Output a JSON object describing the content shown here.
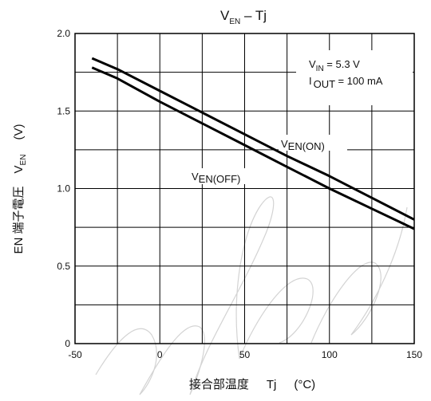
{
  "chart_data": {
    "type": "line",
    "title": {
      "main": "V",
      "sub": "EN",
      "tail": " – Tj"
    },
    "xlabel": {
      "main": "接合部温度",
      "symbol": "Tj",
      "unit": "(°C)"
    },
    "ylabel": {
      "prefix": "EN 端子電圧",
      "symbol": "V",
      "symbol_sub": "EN",
      "unit": "(V)"
    },
    "xlim": [
      -50,
      150
    ],
    "ylim": [
      0,
      2.0
    ],
    "x_ticks": [
      -50,
      0,
      50,
      100,
      150
    ],
    "x_tick_labels": [
      "-50",
      "0",
      "50",
      "100",
      "150"
    ],
    "y_ticks": [
      0,
      0.5,
      1.0,
      1.5,
      2.0
    ],
    "y_tick_labels": [
      "0",
      "0.5",
      "1.0",
      "1.5",
      "2.0"
    ],
    "x_grid": [
      -50,
      -25,
      0,
      25,
      50,
      75,
      100,
      125,
      150
    ],
    "y_grid": [
      0,
      0.25,
      0.5,
      0.75,
      1.0,
      1.25,
      1.5,
      1.75,
      2.0
    ],
    "grid": true,
    "conditions": [
      {
        "main": "V",
        "sub": "IN",
        "tail": " = 5.3 V"
      },
      {
        "main": "I",
        "sub": "OUT",
        "tail": " = 100 mA"
      }
    ],
    "series": [
      {
        "name": "VEN(ON)",
        "label": {
          "main": "V",
          "sub": "EN(ON)"
        },
        "x": [
          -40,
          -25,
          0,
          25,
          50,
          75,
          100,
          125,
          150
        ],
        "values": [
          1.84,
          1.77,
          1.63,
          1.49,
          1.35,
          1.21,
          1.08,
          0.94,
          0.8
        ]
      },
      {
        "name": "VEN(OFF)",
        "label": {
          "main": "V",
          "sub": "EN(OFF)"
        },
        "x": [
          -40,
          -25,
          0,
          25,
          50,
          75,
          100,
          125,
          150
        ],
        "values": [
          1.78,
          1.71,
          1.56,
          1.42,
          1.28,
          1.14,
          1.0,
          0.87,
          0.74
        ]
      }
    ],
    "colors": {
      "line": "#000000",
      "grid": "#000000"
    }
  }
}
